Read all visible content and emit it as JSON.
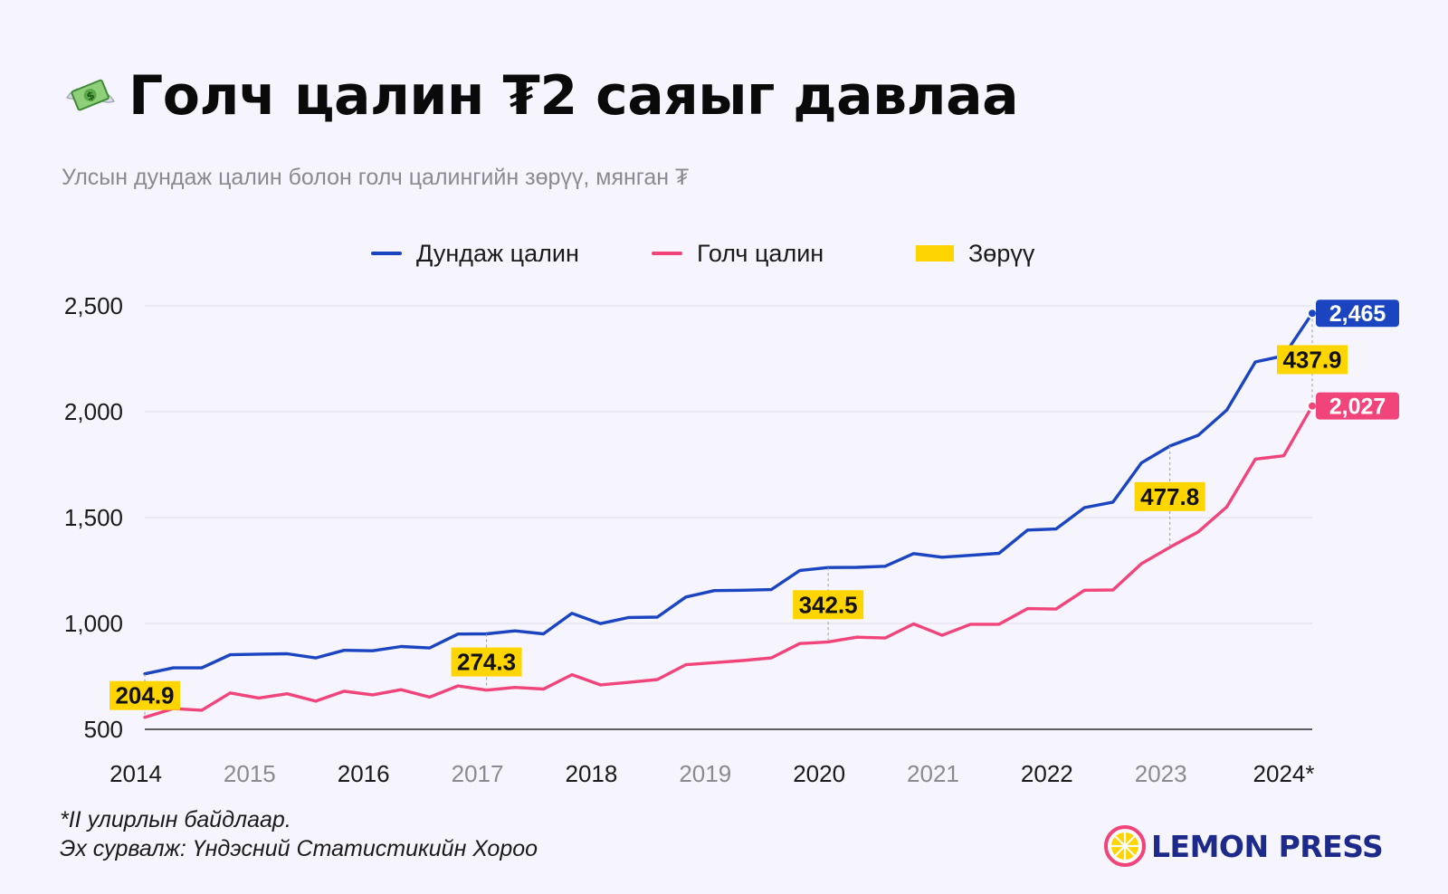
{
  "title": "Голч цалин ₮2 саяыг давлаа",
  "title_icon": "money-with-wings-icon",
  "subtitle": "Улсын дундаж цалин болон голч цалингийн зөрүү, мянган ₮",
  "footnotes": [
    "*II улирлын байдлаар.",
    "Эх сурвалж: Үндэсний Статистикийн Хороо"
  ],
  "brand": "LEMON PRESS",
  "brand_icon": "lemon-slice-icon",
  "colors": {
    "average": "#1b45c0",
    "median": "#f0447a",
    "gap": "#ffd500",
    "background": "#f6f5fd"
  },
  "chart_data": {
    "type": "line",
    "title": "Голч цалин ₮2 саяыг давлаа",
    "subtitle": "Улсын дундаж цалин болон голч цалингийн зөрүү, мянган ₮",
    "x_tick_labels": [
      "2014",
      "2015",
      "2016",
      "2017",
      "2018",
      "2019",
      "2020",
      "2021",
      "2022",
      "2023",
      "2024*"
    ],
    "muted_tick_labels": [
      "2015",
      "2017",
      "2019",
      "2021",
      "2023"
    ],
    "y_ticks": [
      500,
      1000,
      1500,
      2000,
      2500
    ],
    "ylim": [
      500,
      2500
    ],
    "grid": true,
    "legend_position": "top-center",
    "legend": [
      "Дундаж цалин",
      "Голч цалин",
      "Зөрүү"
    ],
    "x": [
      "2014 Q1",
      "2014 Q2",
      "2014 Q3",
      "2014 Q4",
      "2015 Q1",
      "2015 Q2",
      "2015 Q3",
      "2015 Q4",
      "2016 Q1",
      "2016 Q2",
      "2016 Q3",
      "2016 Q4",
      "2017 Q1",
      "2017 Q2",
      "2017 Q3",
      "2017 Q4",
      "2018 Q1",
      "2018 Q2",
      "2018 Q3",
      "2018 Q4",
      "2019 Q1",
      "2019 Q2",
      "2019 Q3",
      "2019 Q4",
      "2020 Q1",
      "2020 Q2",
      "2020 Q3",
      "2020 Q4",
      "2021 Q1",
      "2021 Q2",
      "2021 Q3",
      "2021 Q4",
      "2022 Q1",
      "2022 Q2",
      "2022 Q3",
      "2022 Q4",
      "2023 Q1",
      "2023 Q2",
      "2023 Q3",
      "2023 Q4",
      "2024 Q1",
      "2024 Q2"
    ],
    "series": [
      {
        "name": "Дундаж цалин",
        "values": [
          762,
          790,
          790,
          852,
          855,
          857,
          837,
          873,
          871,
          891,
          884,
          950,
          951,
          965,
          951,
          1048,
          999,
          1028,
          1030,
          1125,
          1155,
          1157,
          1160,
          1250,
          1264,
          1265,
          1270,
          1330,
          1313,
          1322,
          1331,
          1441,
          1446,
          1547,
          1573,
          1758,
          1838,
          1889,
          2008,
          2235,
          2264,
          2465
        ]
      },
      {
        "name": "Голч цалин",
        "values": [
          557,
          598,
          590,
          672,
          648,
          668,
          633,
          680,
          663,
          687,
          652,
          705,
          685,
          698,
          690,
          758,
          710,
          722,
          735,
          805,
          815,
          825,
          837,
          905,
          913,
          935,
          931,
          998,
          944,
          996,
          996,
          1070,
          1068,
          1157,
          1158,
          1282,
          1360,
          1433,
          1551,
          1776,
          1792,
          2027
        ]
      }
    ],
    "gap_labels": [
      {
        "x": "2014 Q1",
        "value": 204.9
      },
      {
        "x": "2017 Q1",
        "value": 274.3
      },
      {
        "x": "2020 Q1",
        "value": 342.5
      },
      {
        "x": "2023 Q1",
        "value": 477.8
      },
      {
        "x": "2024 Q2",
        "value": 437.9
      }
    ],
    "end_labels": [
      "2,465",
      "2,027"
    ]
  }
}
